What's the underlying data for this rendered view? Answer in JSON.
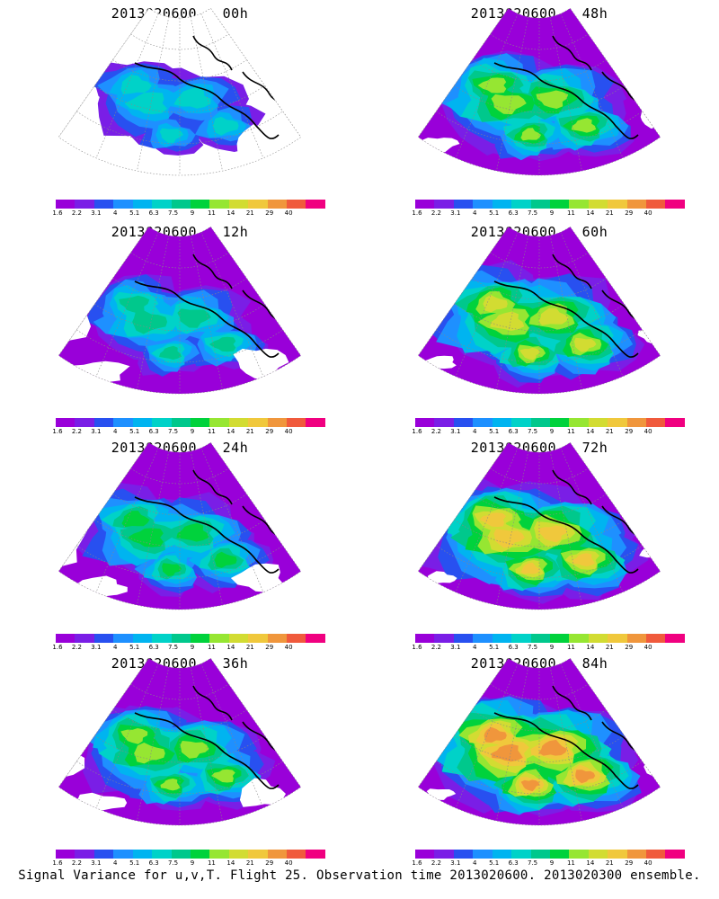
{
  "panels": [
    {
      "title": "2013020600 + 00h",
      "lead_hours": 0
    },
    {
      "title": "2013020600 + 48h",
      "lead_hours": 48
    },
    {
      "title": "2013020600 + 12h",
      "lead_hours": 12
    },
    {
      "title": "2013020600 + 60h",
      "lead_hours": 60
    },
    {
      "title": "2013020600 + 24h",
      "lead_hours": 24
    },
    {
      "title": "2013020600 + 72h",
      "lead_hours": 72
    },
    {
      "title": "2013020600 + 36h",
      "lead_hours": 36
    },
    {
      "title": "2013020600 + 84h",
      "lead_hours": 84
    }
  ],
  "colorbar": {
    "labels": [
      "1.6",
      "2.2",
      "3.1",
      "4",
      "5.1",
      "6.3",
      "7.5",
      "9",
      "11",
      "14",
      "21",
      "29",
      "40"
    ],
    "colors": [
      "#9900d9",
      "#7a1ee6",
      "#2850f0",
      "#1e90ff",
      "#00b4f0",
      "#00d2c8",
      "#00c88c",
      "#00d23c",
      "#96e632",
      "#d2dc32",
      "#f0c83c",
      "#f0963c",
      "#f05a3c",
      "#f00080"
    ]
  },
  "map_colors": {
    "ocean_background": "#ffffff",
    "coastline": "#000000",
    "graticule": "#888888"
  },
  "footer": {
    "caption": "Signal Variance for u,v,T. Flight 25. Observation time 2013020600. 2013020300 ensemble."
  }
}
